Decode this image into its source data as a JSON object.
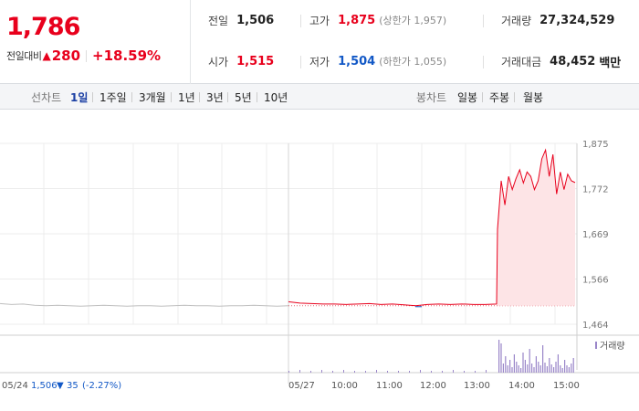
{
  "quote": {
    "price": "1,786",
    "change_label": "전일대비",
    "change_arrow": "▲",
    "change_value": "280",
    "change_percent": "+18.59%",
    "prev_close_label": "전일",
    "prev_close": "1,506",
    "high_label": "고가",
    "high": "1,875",
    "upper_limit": "(상한가 1,957)",
    "volume_label": "거래량",
    "volume": "27,324,529",
    "open_label": "시가",
    "open": "1,515",
    "low_label": "저가",
    "low": "1,504",
    "lower_limit": "(하한가 1,055)",
    "amount_label": "거래대금",
    "amount": "48,452",
    "amount_unit": "백만"
  },
  "period_bar": {
    "line_label": "선차트",
    "line_items": [
      "1일",
      "1주일",
      "3개월",
      "1년",
      "3년",
      "5년",
      "10년"
    ],
    "active_line": "1일",
    "candle_label": "봉차트",
    "candle_items": [
      "일봉",
      "주봉",
      "월봉"
    ]
  },
  "colors": {
    "up": "#e8001c",
    "down": "#1258c6",
    "prev_line": "#bfbfbf",
    "fill": "#fde4e6",
    "volume": "#9a86c9"
  },
  "chart_data": {
    "type": "line",
    "y_ticks": [
      "1,875",
      "1,772",
      "1,669",
      "1,566",
      "1,464"
    ],
    "ylim": [
      1464,
      1875
    ],
    "x_ticks": [
      "05/27",
      "10:00",
      "11:00",
      "12:00",
      "13:00",
      "14:00",
      "15:00"
    ],
    "prev_day_label": "05/24",
    "prev_day_close": "1,506",
    "prev_day_arrow": "▼",
    "prev_day_change": "35",
    "prev_day_pct": "(-2.27%)",
    "volume_legend": "거래량",
    "prev_close_ref": 1506,
    "series": [
      {
        "values_prev_day": [
          1511,
          1509,
          1510,
          1507,
          1506,
          1507,
          1506,
          1505,
          1506,
          1507,
          1506,
          1505,
          1506,
          1506,
          1505,
          1506,
          1507,
          1506,
          1506,
          1505,
          1506,
          1506,
          1507,
          1506,
          1505,
          1506
        ],
        "times": [
          "09:00",
          "09:15",
          "09:30",
          "09:45",
          "10:00",
          "10:15",
          "10:30",
          "10:45",
          "11:00",
          "11:15",
          "11:30",
          "11:45",
          "12:00",
          "12:15",
          "12:30",
          "12:45",
          "13:00",
          "13:15",
          "13:30",
          "13:35",
          "13:40",
          "13:45",
          "13:50",
          "13:55",
          "14:00",
          "14:05",
          "14:10",
          "14:15",
          "14:20",
          "14:25",
          "14:30",
          "14:35",
          "14:40",
          "14:45",
          "14:50",
          "14:55",
          "15:00",
          "15:05",
          "15:10",
          "15:15",
          "15:20"
        ],
        "values": [
          1515,
          1512,
          1511,
          1510,
          1510,
          1509,
          1510,
          1511,
          1509,
          1510,
          1508,
          1506,
          1509,
          1510,
          1509,
          1510,
          1509,
          1509,
          1510,
          1680,
          1790,
          1735,
          1800,
          1770,
          1795,
          1815,
          1785,
          1810,
          1800,
          1770,
          1790,
          1840,
          1860,
          1800,
          1850,
          1760,
          1810,
          1770,
          1805,
          1790,
          1786
        ]
      }
    ]
  }
}
